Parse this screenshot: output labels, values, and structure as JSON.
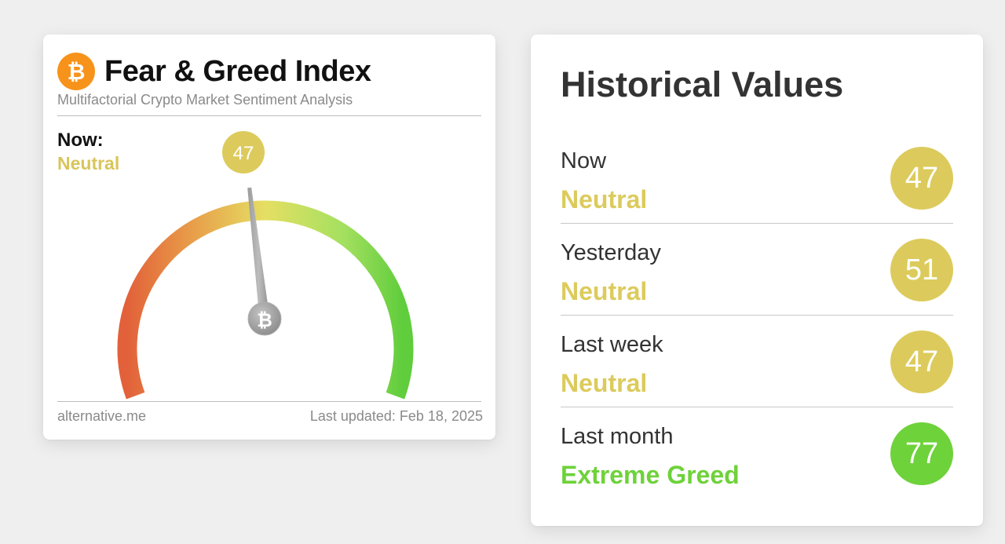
{
  "widget": {
    "logo_glyph": "₿",
    "title": "Fear & Greed Index",
    "subtitle": "Multifactorial Crypto Market Sentiment Analysis",
    "now_label": "Now:",
    "now_classification": "Neutral",
    "value": 47,
    "value_label": "47",
    "hub_glyph": "₿",
    "footer_source": "alternative.me",
    "footer_updated": "Last updated: Feb 18, 2025",
    "colors": {
      "neutral": "#d8c55b",
      "fear": "#e0613a",
      "greed": "#6ad13c",
      "logo": "#f7931a"
    }
  },
  "historical": {
    "title": "Historical Values",
    "rows": [
      {
        "label": "Now",
        "classification": "Neutral",
        "value": "47",
        "color": "#dccb5c"
      },
      {
        "label": "Yesterday",
        "classification": "Neutral",
        "value": "51",
        "color": "#dccb5c"
      },
      {
        "label": "Last week",
        "classification": "Neutral",
        "value": "47",
        "color": "#dccb5c"
      },
      {
        "label": "Last month",
        "classification": "Extreme Greed",
        "value": "77",
        "color": "#6ed23a"
      }
    ]
  }
}
